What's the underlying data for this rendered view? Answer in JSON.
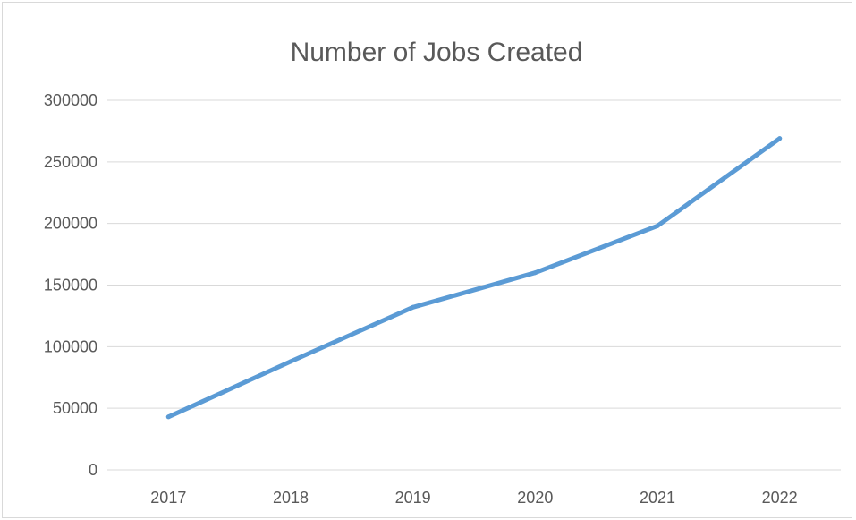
{
  "chart_data": {
    "type": "line",
    "title": "Number of Jobs Created",
    "xlabel": "",
    "ylabel": "",
    "categories": [
      "2017",
      "2018",
      "2019",
      "2020",
      "2021",
      "2022"
    ],
    "series": [
      {
        "values": [
          43000,
          88000,
          132000,
          160000,
          198000,
          269000
        ],
        "color": "#5b9bd5"
      }
    ],
    "ylim": [
      0,
      300000
    ],
    "yticks": [
      0,
      50000,
      100000,
      150000,
      200000,
      250000,
      300000
    ],
    "ytick_labels": [
      "0",
      "50000",
      "100000",
      "150000",
      "200000",
      "250000",
      "300000"
    ],
    "grid": true,
    "legend": "none"
  },
  "colors": {
    "grid": "#d9d9d9",
    "text": "#595959",
    "line": "#5b9bd5"
  }
}
